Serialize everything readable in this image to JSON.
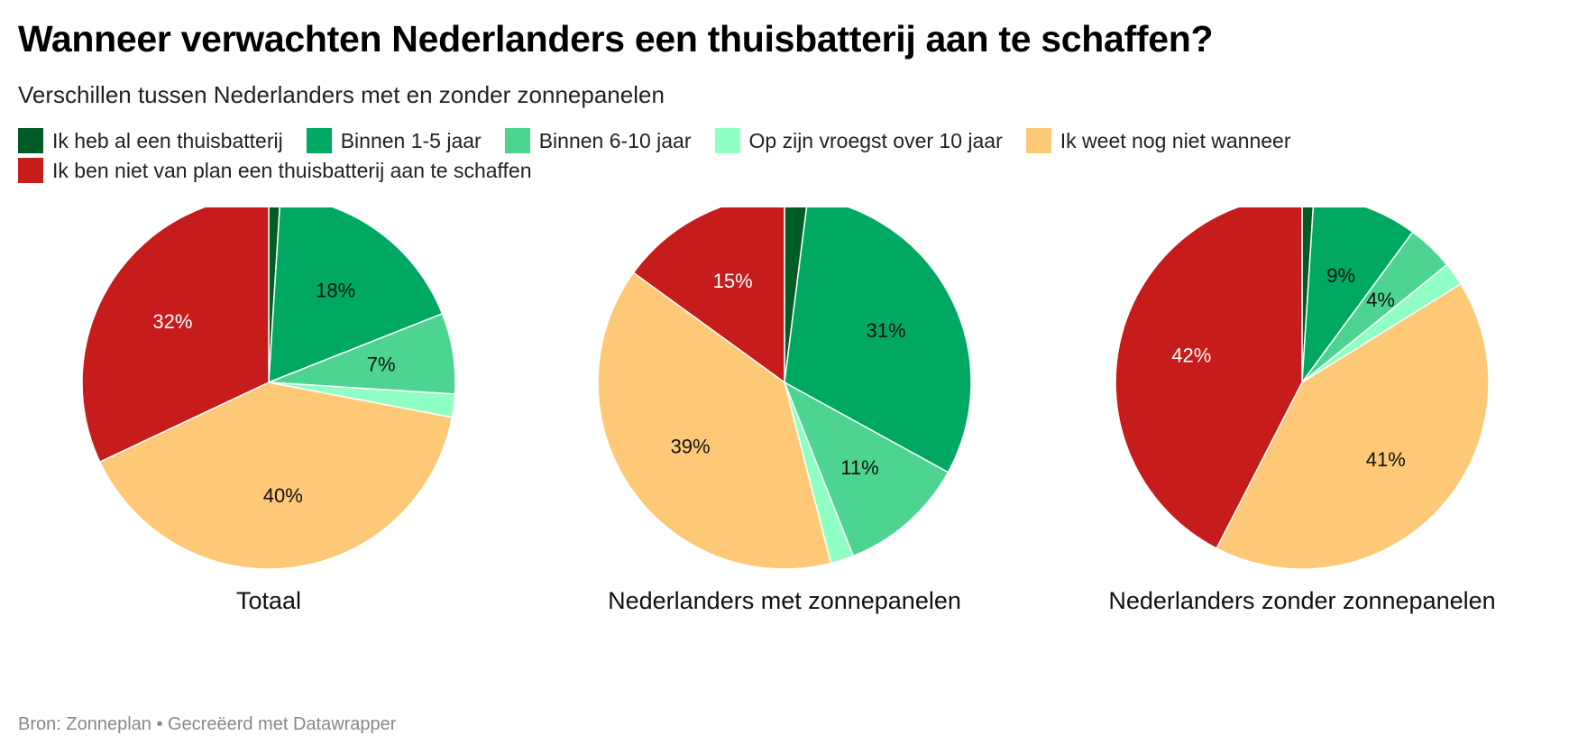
{
  "title": "Wanneer verwachten Nederlanders een thuisbatterij aan te schaffen?",
  "subtitle": "Verschillen tussen Nederlanders met en zonder zonnepanelen",
  "legend": [
    {
      "label": "Ik heb al een thuisbatterij",
      "color": "#005c24"
    },
    {
      "label": "Binnen 1-5 jaar",
      "color": "#00a862"
    },
    {
      "label": "Binnen 6-10 jaar",
      "color": "#4dd490"
    },
    {
      "label": "Op zijn vroegst over 10 jaar",
      "color": "#8fffc4"
    },
    {
      "label": "Ik weet nog niet wanneer",
      "color": "#fdc977"
    },
    {
      "label": "Ik ben niet van plan een thuisbatterij aan te schaffen",
      "color": "#c71c1c"
    }
  ],
  "source": "Bron: Zonneplan • Gecreëerd met Datawrapper",
  "chart_data": [
    {
      "type": "pie",
      "title": "Totaal",
      "categories": [
        "Ik heb al een thuisbatterij",
        "Binnen 1-5 jaar",
        "Binnen 6-10 jaar",
        "Op zijn vroegst over 10 jaar",
        "Ik weet nog niet wanneer",
        "Ik ben niet van plan een thuisbatterij aan te schaffen"
      ],
      "values": [
        1,
        18,
        7,
        2,
        40,
        32
      ],
      "labels": [
        "",
        "18%",
        "7%",
        "",
        "40%",
        "32%"
      ]
    },
    {
      "type": "pie",
      "title": "Nederlanders met zonnepanelen",
      "categories": [
        "Ik heb al een thuisbatterij",
        "Binnen 1-5 jaar",
        "Binnen 6-10 jaar",
        "Op zijn vroegst over 10 jaar",
        "Ik weet nog niet wanneer",
        "Ik ben niet van plan een thuisbatterij aan te schaffen"
      ],
      "values": [
        2,
        31,
        11,
        2,
        39,
        15
      ],
      "labels": [
        "",
        "31%",
        "11%",
        "",
        "39%",
        "15%"
      ]
    },
    {
      "type": "pie",
      "title": "Nederlanders zonder zonnepanelen",
      "categories": [
        "Ik heb al een thuisbatterij",
        "Binnen 1-5 jaar",
        "Binnen 6-10 jaar",
        "Op zijn vroegst over 10 jaar",
        "Ik weet nog niet wanneer",
        "Ik ben niet van plan een thuisbatterij aan te schaffen"
      ],
      "values": [
        1,
        9,
        4,
        2,
        41,
        42
      ],
      "labels": [
        "",
        "9%",
        "4%",
        "",
        "41%",
        "42%"
      ]
    }
  ]
}
